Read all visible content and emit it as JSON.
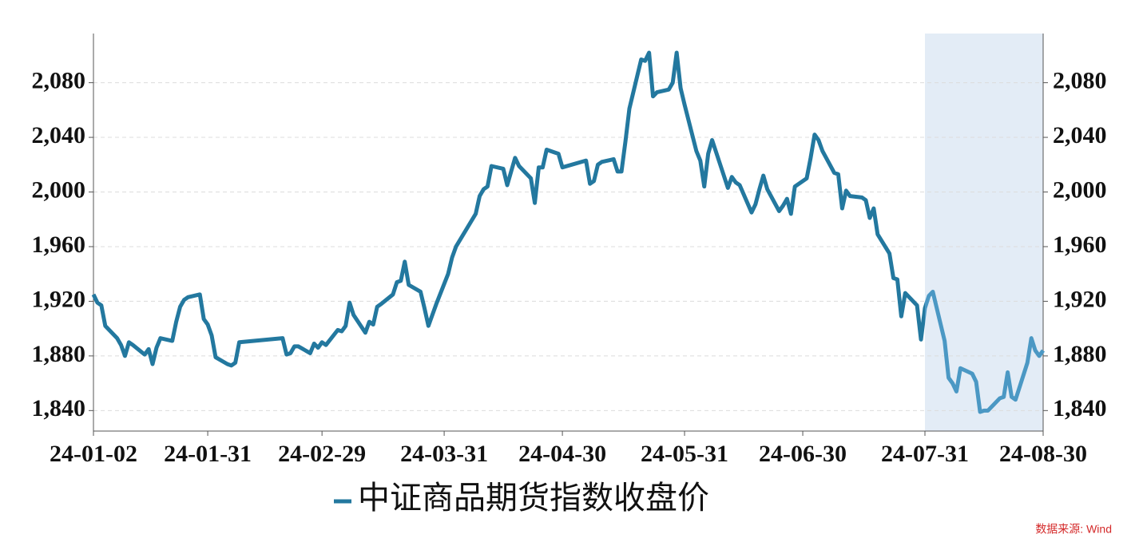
{
  "chart_data": {
    "type": "line",
    "x": [
      "24-01-02",
      "24-01-03",
      "24-01-04",
      "24-01-05",
      "24-01-08",
      "24-01-09",
      "24-01-10",
      "24-01-11",
      "24-01-12",
      "24-01-15",
      "24-01-16",
      "24-01-17",
      "24-01-18",
      "24-01-19",
      "24-01-22",
      "24-01-23",
      "24-01-24",
      "24-01-25",
      "24-01-26",
      "24-01-29",
      "24-01-30",
      "24-01-31",
      "24-02-01",
      "24-02-02",
      "24-02-05",
      "24-02-06",
      "24-02-07",
      "24-02-08",
      "24-02-19",
      "24-02-20",
      "24-02-21",
      "24-02-22",
      "24-02-23",
      "24-02-26",
      "24-02-27",
      "24-02-28",
      "24-02-29",
      "24-03-01",
      "24-03-04",
      "24-03-05",
      "24-03-06",
      "24-03-07",
      "24-03-08",
      "24-03-11",
      "24-03-12",
      "24-03-13",
      "24-03-14",
      "24-03-15",
      "24-03-18",
      "24-03-19",
      "24-03-20",
      "24-03-21",
      "24-03-22",
      "24-03-25",
      "24-03-26",
      "24-03-27",
      "24-03-28",
      "24-03-29",
      "24-04-01",
      "24-04-02",
      "24-04-03",
      "24-04-08",
      "24-04-09",
      "24-04-10",
      "24-04-11",
      "24-04-12",
      "24-04-15",
      "24-04-16",
      "24-04-17",
      "24-04-18",
      "24-04-19",
      "24-04-22",
      "24-04-23",
      "24-04-24",
      "24-04-25",
      "24-04-26",
      "24-04-29",
      "24-04-30",
      "24-05-06",
      "24-05-07",
      "24-05-08",
      "24-05-09",
      "24-05-10",
      "24-05-13",
      "24-05-14",
      "24-05-15",
      "24-05-16",
      "24-05-17",
      "24-05-20",
      "24-05-21",
      "24-05-22",
      "24-05-23",
      "24-05-24",
      "24-05-27",
      "24-05-28",
      "24-05-29",
      "24-05-30",
      "24-05-31",
      "24-06-03",
      "24-06-04",
      "24-06-05",
      "24-06-06",
      "24-06-07",
      "24-06-11",
      "24-06-12",
      "24-06-13",
      "24-06-14",
      "24-06-17",
      "24-06-18",
      "24-06-19",
      "24-06-20",
      "24-06-21",
      "24-06-24",
      "24-06-25",
      "24-06-26",
      "24-06-27",
      "24-06-28",
      "24-07-01",
      "24-07-02",
      "24-07-03",
      "24-07-04",
      "24-07-05",
      "24-07-08",
      "24-07-09",
      "24-07-10",
      "24-07-11",
      "24-07-12",
      "24-07-15",
      "24-07-16",
      "24-07-17",
      "24-07-18",
      "24-07-19",
      "24-07-22",
      "24-07-23",
      "24-07-24",
      "24-07-25",
      "24-07-26",
      "24-07-29",
      "24-07-30",
      "24-07-31",
      "24-08-01",
      "24-08-02",
      "24-08-05",
      "24-08-06",
      "24-08-07",
      "24-08-08",
      "24-08-09",
      "24-08-12",
      "24-08-13",
      "24-08-14",
      "24-08-15",
      "24-08-16",
      "24-08-19",
      "24-08-20",
      "24-08-21",
      "24-08-22",
      "24-08-23",
      "24-08-26",
      "24-08-27",
      "24-08-28",
      "24-08-29",
      "24-08-30"
    ],
    "series": [
      {
        "name": "中证商品期货指数收盘价",
        "color": "#23789f",
        "values": [
          1925,
          1919,
          1917,
          1902,
          1893,
          1888,
          1880,
          1890,
          1888,
          1881,
          1885,
          1874,
          1886,
          1893,
          1891,
          1905,
          1916,
          1921,
          1923,
          1925,
          1907,
          1903,
          1895,
          1879,
          1874,
          1873,
          1875,
          1890,
          1893,
          1881,
          1882,
          1887,
          1887,
          1882,
          1889,
          1886,
          1890,
          1888,
          1899,
          1898,
          1902,
          1919,
          1910,
          1897,
          1905,
          1903,
          1916,
          1918,
          1925,
          1934,
          1935,
          1949,
          1932,
          1927,
          1915,
          1902,
          1910,
          1918,
          1940,
          1952,
          1960,
          1984,
          1997,
          2002,
          2004,
          2019,
          2017,
          2005,
          2015,
          2025,
          2019,
          2010,
          1992,
          2018,
          2018,
          2031,
          2028,
          2018,
          2023,
          2006,
          2008,
          2020,
          2022,
          2024,
          2015,
          2015,
          2037,
          2061,
          2097,
          2096,
          2102,
          2070,
          2073,
          2075,
          2080,
          2102,
          2076,
          2064,
          2030,
          2023,
          2004,
          2028,
          2038,
          2003,
          2011,
          2007,
          2005,
          1985,
          1991,
          2002,
          2012,
          2002,
          1986,
          1990,
          1995,
          1984,
          2004,
          2010,
          2025,
          2042,
          2038,
          2030,
          2014,
          2013,
          1988,
          2001,
          1997,
          1996,
          1994,
          1981,
          1988,
          1969,
          1955,
          1937,
          1936,
          1909,
          1926,
          1917,
          1892,
          1915,
          1924,
          1927,
          1891,
          1864,
          1860,
          1854,
          1871,
          1867,
          1861,
          1839,
          1840,
          1840,
          1849,
          1850,
          1868,
          1850,
          1848,
          1875,
          1893,
          1884,
          1880,
          1884
        ]
      }
    ],
    "xlim": [
      "24-01-02",
      "24-08-30"
    ],
    "xticks": [
      "24-01-02",
      "24-01-31",
      "24-02-29",
      "24-03-31",
      "24-04-30",
      "24-05-31",
      "24-06-30",
      "24-07-31",
      "24-08-30"
    ],
    "ylim": [
      1825,
      2116
    ],
    "yticks": [
      {
        "value": 1840,
        "label": "1,840"
      },
      {
        "value": 1880,
        "label": "1,880"
      },
      {
        "value": 1920,
        "label": "1,920"
      },
      {
        "value": 1960,
        "label": "1,960"
      },
      {
        "value": 2000,
        "label": "2,000"
      },
      {
        "value": 2040,
        "label": "2,040"
      },
      {
        "value": 2080,
        "label": "2,080"
      }
    ],
    "y2lim": [
      1825,
      2116
    ],
    "y2ticks": [
      {
        "value": 1840,
        "label": "1,840"
      },
      {
        "value": 1880,
        "label": "1,880"
      },
      {
        "value": 1920,
        "label": "1,920"
      },
      {
        "value": 1960,
        "label": "1,960"
      },
      {
        "value": 2000,
        "label": "2,000"
      },
      {
        "value": 2040,
        "label": "2,040"
      },
      {
        "value": 2080,
        "label": "2,080"
      }
    ],
    "grid": true,
    "highlight": {
      "x": [
        "24-07-31",
        "24-08-30"
      ],
      "color": "#e3ecf6",
      "line_color": "#4b98c4"
    },
    "legend": "bottom",
    "source": "数据来源: Wind"
  }
}
